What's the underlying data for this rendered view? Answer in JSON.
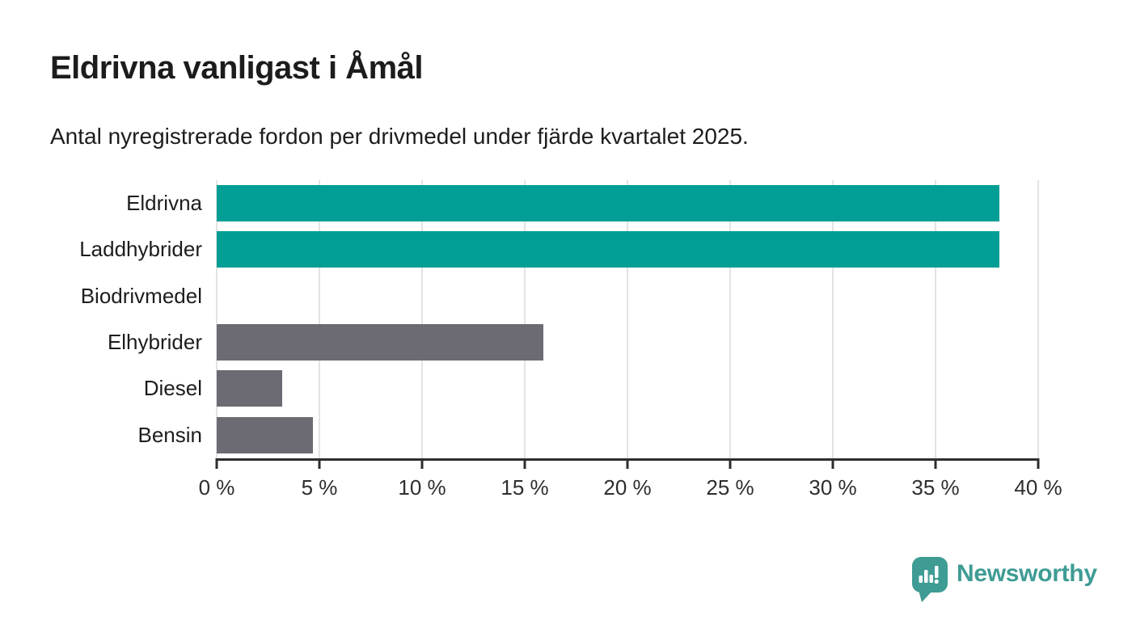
{
  "chart_data": {
    "type": "bar",
    "orientation": "horizontal",
    "title": "Eldrivna vanligast i Åmål",
    "subtitle": "Antal nyregistrerade fordon per drivmedel under fjärde kvartalet 2025.",
    "categories": [
      "Eldrivna",
      "Laddhybrider",
      "Biodrivmedel",
      "Elhybrider",
      "Diesel",
      "Bensin"
    ],
    "values": [
      38.1,
      38.1,
      0,
      15.9,
      3.2,
      4.7
    ],
    "value_unit": "%",
    "xlim": [
      0,
      40
    ],
    "x_ticks": [
      0,
      5,
      10,
      15,
      20,
      25,
      30,
      35,
      40
    ],
    "x_tick_labels": [
      "0 %",
      "5 %",
      "10 %",
      "15 %",
      "20 %",
      "25 %",
      "30 %",
      "35 %",
      "40 %"
    ],
    "bar_colors": [
      "#009E94",
      "#009E94",
      "#6C6A72",
      "#6C6A72",
      "#6C6A72",
      "#6C6A72"
    ],
    "grid": "vertical",
    "legend": "none",
    "colors": {
      "teal": "#009E94",
      "gray": "#6C6A72",
      "gridline": "#E3E3E3",
      "axis_line": "#2E2E2E",
      "text": "#1D1D1D"
    }
  },
  "branding": {
    "logo_text": "Newsworthy",
    "logo_color": "#3E9C94",
    "logo_icon": "newsworthy-speech-bubble-chart-icon"
  }
}
